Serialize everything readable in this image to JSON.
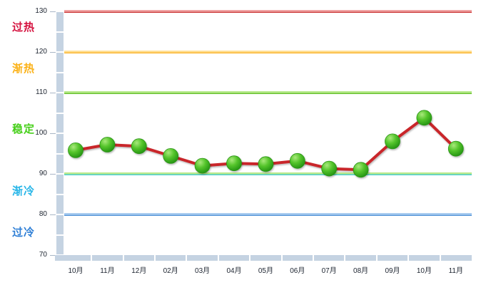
{
  "chart_data": {
    "type": "line",
    "title": "",
    "xlabel": "",
    "ylabel": "",
    "categories": [
      "10月",
      "11月",
      "12月",
      "02月",
      "03月",
      "04月",
      "05月",
      "06月",
      "07月",
      "08月",
      "09月",
      "10月",
      "11月"
    ],
    "values": [
      95.8,
      97.2,
      96.8,
      94.4,
      92.0,
      92.6,
      92.4,
      93.2,
      91.3,
      91.0,
      98.0,
      103.8,
      96.2
    ],
    "ylim": [
      70,
      130
    ],
    "y_ticks": [
      130,
      120,
      110,
      100,
      90,
      80,
      70
    ],
    "legend": "none",
    "grid": "off",
    "line_color": "#c9252b",
    "marker_color": "#3aa81e",
    "boundary_lines": [
      {
        "value": 130,
        "color": "#c11f1f",
        "highlight": "#f0a4a4"
      },
      {
        "value": 120,
        "color": "#f9a80d",
        "highlight": "#ffdf95"
      },
      {
        "value": 110,
        "color": "#54b517",
        "highlight": "#b5e98a"
      },
      {
        "value": 90,
        "color": "#23c3e8",
        "highlight": "#b9e98c"
      },
      {
        "value": 80,
        "color": "#3d86d2",
        "highlight": "#aacdf0"
      }
    ],
    "zone_labels": [
      {
        "text": "过热",
        "color": "#d5123f",
        "range": [
          120,
          130
        ]
      },
      {
        "text": "渐热",
        "color": "#fbb117",
        "range": [
          110,
          120
        ]
      },
      {
        "text": "稳定",
        "color": "#46cf1a",
        "range": [
          90,
          110
        ]
      },
      {
        "text": "渐冷",
        "color": "#29b6e8",
        "range": [
          80,
          90
        ]
      },
      {
        "text": "过冷",
        "color": "#2f7fd6",
        "range": [
          70,
          80
        ]
      }
    ]
  }
}
